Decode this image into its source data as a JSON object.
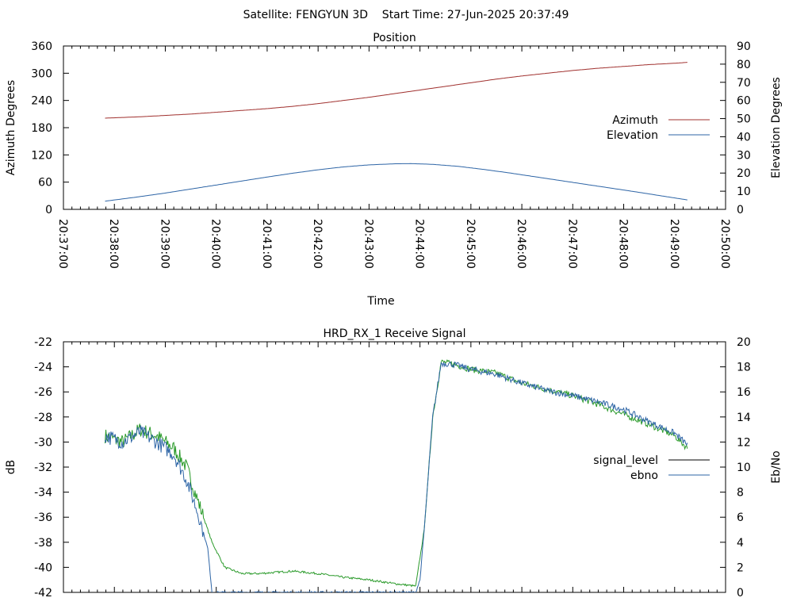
{
  "header": {
    "title": "Satellite: FENGYUN 3D    Start Time: 27-Jun-2025 20:37:49"
  },
  "chart_data": [
    {
      "type": "line",
      "title": "Position",
      "xlabel": "Time",
      "ylabel": "Azimuth Degrees",
      "y2label": "Elevation Degrees",
      "xlim": [
        "20:37:00",
        "20:50:00"
      ],
      "ylim": [
        0,
        360
      ],
      "y2lim": [
        0,
        90
      ],
      "x_ticks": [
        "20:37:00",
        "20:38:00",
        "20:39:00",
        "20:40:00",
        "20:41:00",
        "20:42:00",
        "20:43:00",
        "20:44:00",
        "20:45:00",
        "20:46:00",
        "20:47:00",
        "20:48:00",
        "20:49:00",
        "20:50:00"
      ],
      "y_ticks": [
        "0",
        "60",
        "120",
        "180",
        "240",
        "300",
        "360"
      ],
      "y2_ticks": [
        "0",
        "10",
        "20",
        "30",
        "40",
        "50",
        "60",
        "70",
        "80",
        "90"
      ],
      "legend_position": "right",
      "series": [
        {
          "name": "Azimuth",
          "axis": "y",
          "color": "#a0302e",
          "x": [
            "20:37:49",
            "20:38:30",
            "20:39:00",
            "20:39:30",
            "20:40:00",
            "20:40:30",
            "20:41:00",
            "20:41:30",
            "20:42:00",
            "20:42:30",
            "20:43:00",
            "20:43:30",
            "20:44:00",
            "20:44:30",
            "20:45:00",
            "20:45:30",
            "20:46:00",
            "20:46:30",
            "20:47:00",
            "20:47:30",
            "20:48:00",
            "20:48:30",
            "20:49:00",
            "20:49:15"
          ],
          "values": [
            201,
            204,
            207,
            210,
            214,
            218,
            222,
            227,
            233,
            240,
            247,
            255,
            263,
            271,
            279,
            287,
            294,
            300,
            306,
            311,
            315,
            319,
            322,
            324
          ]
        },
        {
          "name": "Elevation",
          "axis": "y2",
          "color": "#2e65a6",
          "x": [
            "20:37:49",
            "20:38:30",
            "20:39:00",
            "20:39:30",
            "20:40:00",
            "20:40:30",
            "20:41:00",
            "20:41:30",
            "20:42:00",
            "20:42:30",
            "20:43:00",
            "20:43:30",
            "20:43:50",
            "20:44:15",
            "20:44:45",
            "20:45:15",
            "20:45:45",
            "20:46:15",
            "20:46:45",
            "20:47:15",
            "20:47:45",
            "20:48:15",
            "20:48:45",
            "20:49:15"
          ],
          "values": [
            4.5,
            7,
            9,
            11.2,
            13.4,
            15.6,
            17.8,
            19.9,
            21.8,
            23.4,
            24.5,
            25.1,
            25.2,
            24.8,
            23.7,
            22.0,
            20.1,
            18.0,
            15.9,
            13.8,
            11.7,
            9.6,
            7.4,
            5.2
          ]
        }
      ]
    },
    {
      "type": "line",
      "title": "HRD_RX_1 Receive Signal",
      "ylabel": "dB",
      "y2label": "Eb/No",
      "xlim": [
        "20:37:00",
        "20:50:00"
      ],
      "ylim": [
        -42,
        -22
      ],
      "y2lim": [
        0,
        20
      ],
      "y_ticks": [
        "-42",
        "-40",
        "-38",
        "-36",
        "-34",
        "-32",
        "-30",
        "-28",
        "-26",
        "-24",
        "-22"
      ],
      "y2_ticks": [
        "0",
        "2",
        "4",
        "6",
        "8",
        "10",
        "12",
        "14",
        "16",
        "18",
        "20"
      ],
      "legend_position": "right",
      "series": [
        {
          "name": "signal_level",
          "axis": "y",
          "color": "#2a9a2a",
          "x": [
            "20:37:49",
            "20:38:10",
            "20:38:30",
            "20:38:50",
            "20:39:10",
            "20:39:25",
            "20:39:40",
            "20:39:55",
            "20:40:10",
            "20:40:30",
            "20:40:50",
            "20:41:30",
            "20:42:00",
            "20:42:30",
            "20:43:00",
            "20:43:30",
            "20:43:55",
            "20:44:05",
            "20:44:15",
            "20:44:25",
            "20:44:40",
            "20:45:00",
            "20:45:30",
            "20:46:00",
            "20:46:30",
            "20:47:00",
            "20:47:30",
            "20:48:00",
            "20:48:30",
            "20:49:00",
            "20:49:15"
          ],
          "values": [
            -29.5,
            -30.0,
            -29.0,
            -29.5,
            -30.5,
            -32.0,
            -35.0,
            -38.0,
            -40.0,
            -40.5,
            -40.5,
            -40.3,
            -40.5,
            -40.8,
            -41.0,
            -41.3,
            -41.5,
            -37.0,
            -28.0,
            -23.6,
            -23.8,
            -24.2,
            -24.5,
            -25.3,
            -25.8,
            -26.3,
            -27.0,
            -27.8,
            -28.6,
            -29.5,
            -30.5
          ]
        },
        {
          "name": "ebno",
          "axis": "y2",
          "color": "#2e65a6",
          "x": [
            "20:37:49",
            "20:38:10",
            "20:38:30",
            "20:38:50",
            "20:39:10",
            "20:39:25",
            "20:39:40",
            "20:39:50",
            "20:39:55",
            "20:43:55",
            "20:44:00",
            "20:44:05",
            "20:44:15",
            "20:44:25",
            "20:44:40",
            "20:45:00",
            "20:45:30",
            "20:46:00",
            "20:46:30",
            "20:47:00",
            "20:47:30",
            "20:48:00",
            "20:48:30",
            "20:49:00",
            "20:49:15"
          ],
          "values": [
            12.5,
            12.0,
            12.8,
            12.0,
            11.0,
            9.0,
            6.0,
            3.5,
            0,
            0,
            1.0,
            5.0,
            14.0,
            18.3,
            18.2,
            17.8,
            17.4,
            16.7,
            16.1,
            15.7,
            15.2,
            14.6,
            13.6,
            12.7,
            11.8
          ]
        }
      ]
    }
  ]
}
